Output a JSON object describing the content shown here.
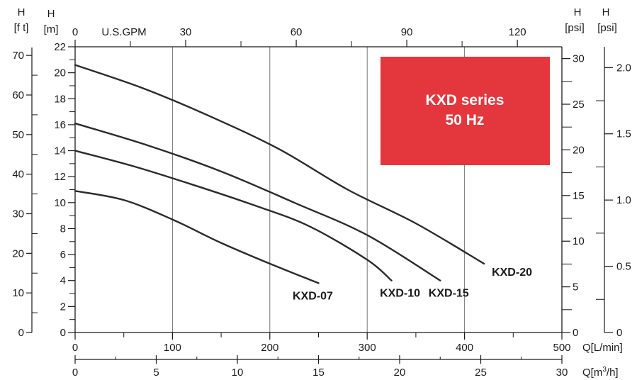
{
  "chart_data": {
    "type": "line",
    "badge": {
      "line1": "KXD series",
      "line2": "50 Hz",
      "color": "#e3373d"
    },
    "colors": {
      "curve": "#2b2b2b",
      "grid": "#777777",
      "axis": "#1a1a1a",
      "text": "#1a1a1a"
    },
    "grid": true,
    "x_primary": {
      "label": "Q[L/min]",
      "range": [
        0,
        500
      ],
      "ticks": [
        "0",
        "100",
        "200",
        "300",
        "400",
        "500"
      ]
    },
    "x_secondary": {
      "label": "Q[m³/h]",
      "label_base": "Q[m",
      "label_sup": "3",
      "label_tail": "/h]",
      "range": [
        0,
        30
      ],
      "ticks": [
        "0",
        "5",
        "10",
        "15",
        "20",
        "25",
        "30"
      ]
    },
    "x_top": {
      "label": "U.S.GPM",
      "range": [
        0,
        132.086
      ],
      "ticks": [
        "0",
        "30",
        "60",
        "90",
        "120"
      ]
    },
    "y_primary": {
      "unit_h": "H",
      "unit_u": "[m]",
      "range": [
        0,
        22
      ],
      "ticks": [
        "0",
        "2",
        "4",
        "6",
        "8",
        "10",
        "12",
        "14",
        "16",
        "18",
        "20",
        "22"
      ]
    },
    "y_feet": {
      "unit_h": "H",
      "unit_u": "[f t]",
      "range": [
        0,
        72.178
      ],
      "ticks": [
        "0",
        "10",
        "20",
        "30",
        "40",
        "50",
        "60",
        "70"
      ]
    },
    "y_psi": {
      "unit_h": "H",
      "unit_u": "[psi]",
      "range": [
        0,
        31.29
      ],
      "ticks": [
        "0",
        "5",
        "10",
        "15",
        "20",
        "25",
        "30"
      ]
    },
    "y_bar": {
      "unit_h": "H",
      "unit_u": "[psi]",
      "range": [
        0,
        2.157
      ],
      "ticks": [
        "0",
        "0.5",
        "1.0",
        "1.5",
        "2.0"
      ]
    },
    "series": [
      {
        "name": "KXD-07",
        "x": [
          0,
          50,
          100,
          150,
          200,
          250
        ],
        "y": [
          10.9,
          10.2,
          8.7,
          6.9,
          5.3,
          3.8
        ]
      },
      {
        "name": "KXD-10",
        "x": [
          0,
          60,
          120,
          180,
          240,
          300,
          325
        ],
        "y": [
          14.0,
          12.8,
          11.4,
          9.9,
          8.2,
          5.6,
          4.0
        ]
      },
      {
        "name": "KXD-15",
        "x": [
          0,
          75,
          150,
          225,
          300,
          375
        ],
        "y": [
          16.1,
          14.4,
          12.4,
          10.0,
          7.5,
          4.0
        ]
      },
      {
        "name": "KXD-20",
        "x": [
          0,
          70,
          140,
          210,
          280,
          350,
          420
        ],
        "y": [
          20.6,
          18.8,
          16.6,
          14.1,
          11.0,
          8.4,
          5.3
        ]
      }
    ]
  }
}
